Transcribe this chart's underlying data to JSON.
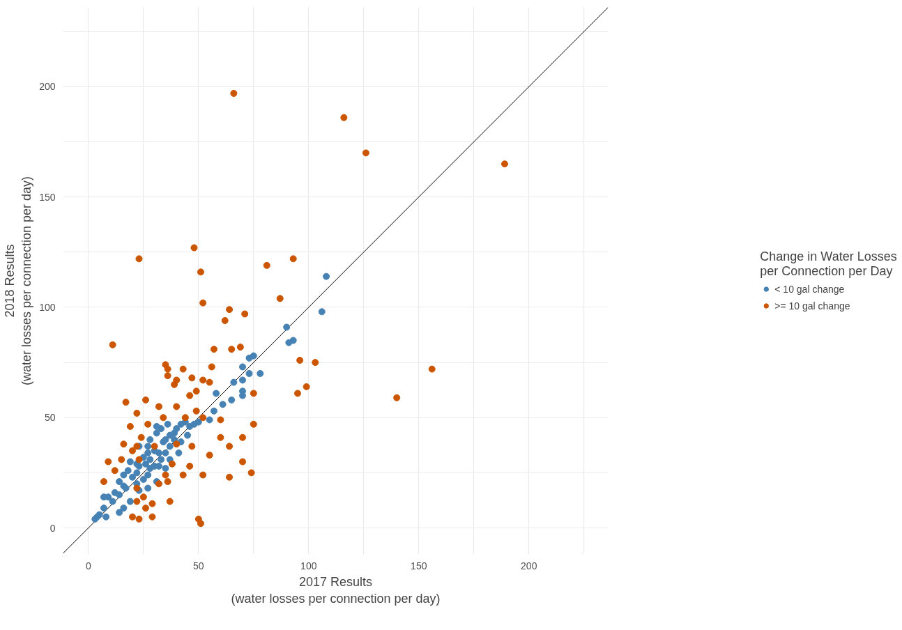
{
  "chart_data": {
    "type": "scatter",
    "xlabel": "2017 Results\n(water losses per connection per day)",
    "ylabel": "2018 Results\n(water losses per connection per day)",
    "legend_title": "Change in Water Losses per Connection per Day",
    "legend": "right",
    "grid": true,
    "xlim": [
      -11.5,
      236
    ],
    "ylim": [
      -12,
      236
    ],
    "xticks": [
      0,
      {
        "value": 25,
        "label": null
      },
      50,
      {
        "value": 75,
        "label": null
      },
      100,
      {
        "value": 125,
        "label": null
      },
      150,
      {
        "value": 175,
        "label": null
      },
      200,
      {
        "value": 225,
        "label": null
      }
    ],
    "yticks": [
      0,
      {
        "value": 25,
        "label": null
      },
      50,
      {
        "value": 75,
        "label": null
      },
      100,
      {
        "value": 125,
        "label": null
      },
      150,
      {
        "value": 175,
        "label": null
      },
      200,
      {
        "value": 225,
        "label": null
      }
    ],
    "series": [
      {
        "type": "line",
        "marker": "none",
        "color": "#000000",
        "x": [
          -11.5,
          236
        ],
        "values": [
          -11.5,
          236
        ]
      },
      {
        "name": "< 10 gal change",
        "marker": "circle",
        "color": "#4682b4",
        "x": [
          108,
          106,
          90,
          93,
          91,
          73,
          75,
          78,
          70,
          73,
          70,
          66,
          65,
          58,
          61,
          57,
          55,
          50,
          70,
          70,
          3,
          4,
          5,
          8,
          7,
          9,
          7,
          11,
          12,
          14,
          14,
          16,
          16,
          18,
          20,
          22,
          19,
          22,
          23,
          25,
          27,
          28,
          30,
          32,
          34,
          35,
          37,
          39,
          40,
          42,
          44,
          46,
          48,
          27,
          30,
          33,
          35,
          37,
          39,
          32,
          25,
          22,
          17,
          26,
          28,
          28,
          31,
          33,
          36,
          27,
          23,
          31,
          19,
          16,
          14,
          45,
          42,
          41,
          37,
          35,
          31,
          27,
          23
        ],
        "values": [
          114,
          98,
          91,
          85,
          84,
          77,
          78,
          70,
          73,
          70,
          67,
          66,
          58,
          61,
          56,
          53,
          49,
          48,
          62,
          60,
          4,
          5,
          6,
          5,
          9,
          14,
          14,
          12,
          16,
          15,
          21,
          19,
          24,
          26,
          23,
          25,
          30,
          29,
          28,
          32,
          34,
          31,
          35,
          34,
          39,
          40,
          42,
          43,
          45,
          47,
          48,
          46,
          47,
          24,
          28,
          31,
          34,
          37,
          40,
          28,
          22,
          20,
          18,
          29,
          27,
          40,
          43,
          45,
          47,
          37,
          37,
          46,
          12,
          9,
          7,
          42,
          39,
          34,
          31,
          27,
          21,
          18,
          17
        ]
      },
      {
        "name": ">= 10 gal change",
        "marker": "circle",
        "color": "#cc5500",
        "x": [
          66,
          116,
          126,
          189,
          23,
          11,
          48,
          51,
          52,
          81,
          93,
          87,
          64,
          62,
          71,
          65,
          57,
          69,
          96,
          103,
          95,
          99,
          75,
          140,
          156,
          75,
          70,
          70,
          74,
          60,
          60,
          64,
          64,
          50,
          51,
          55,
          52,
          35,
          36,
          36,
          43,
          39,
          40,
          47,
          52,
          55,
          49,
          46,
          9,
          7,
          17,
          26,
          22,
          19,
          24,
          32,
          34,
          40,
          44,
          27,
          30,
          22,
          15,
          12,
          16,
          20,
          23,
          32,
          36,
          37,
          29,
          29,
          23,
          20,
          22,
          25,
          26,
          22,
          43,
          46,
          38,
          35,
          40,
          47,
          52,
          49,
          56
        ],
        "values": [
          197,
          186,
          170,
          165,
          122,
          83,
          127,
          116,
          102,
          119,
          122,
          104,
          99,
          94,
          97,
          81,
          81,
          82,
          76,
          75,
          61,
          64,
          61,
          59,
          72,
          47,
          41,
          30,
          25,
          49,
          41,
          37,
          23,
          4,
          2,
          33,
          24,
          74,
          72,
          69,
          72,
          65,
          67,
          68,
          67,
          66,
          62,
          60,
          30,
          21,
          57,
          58,
          52,
          46,
          41,
          55,
          50,
          55,
          50,
          47,
          37,
          37,
          31,
          26,
          38,
          35,
          31,
          20,
          21,
          12,
          11,
          5,
          4,
          5,
          12,
          14,
          9,
          18,
          24,
          28,
          29,
          24,
          38,
          37,
          50,
          53,
          73
        ]
      }
    ]
  }
}
